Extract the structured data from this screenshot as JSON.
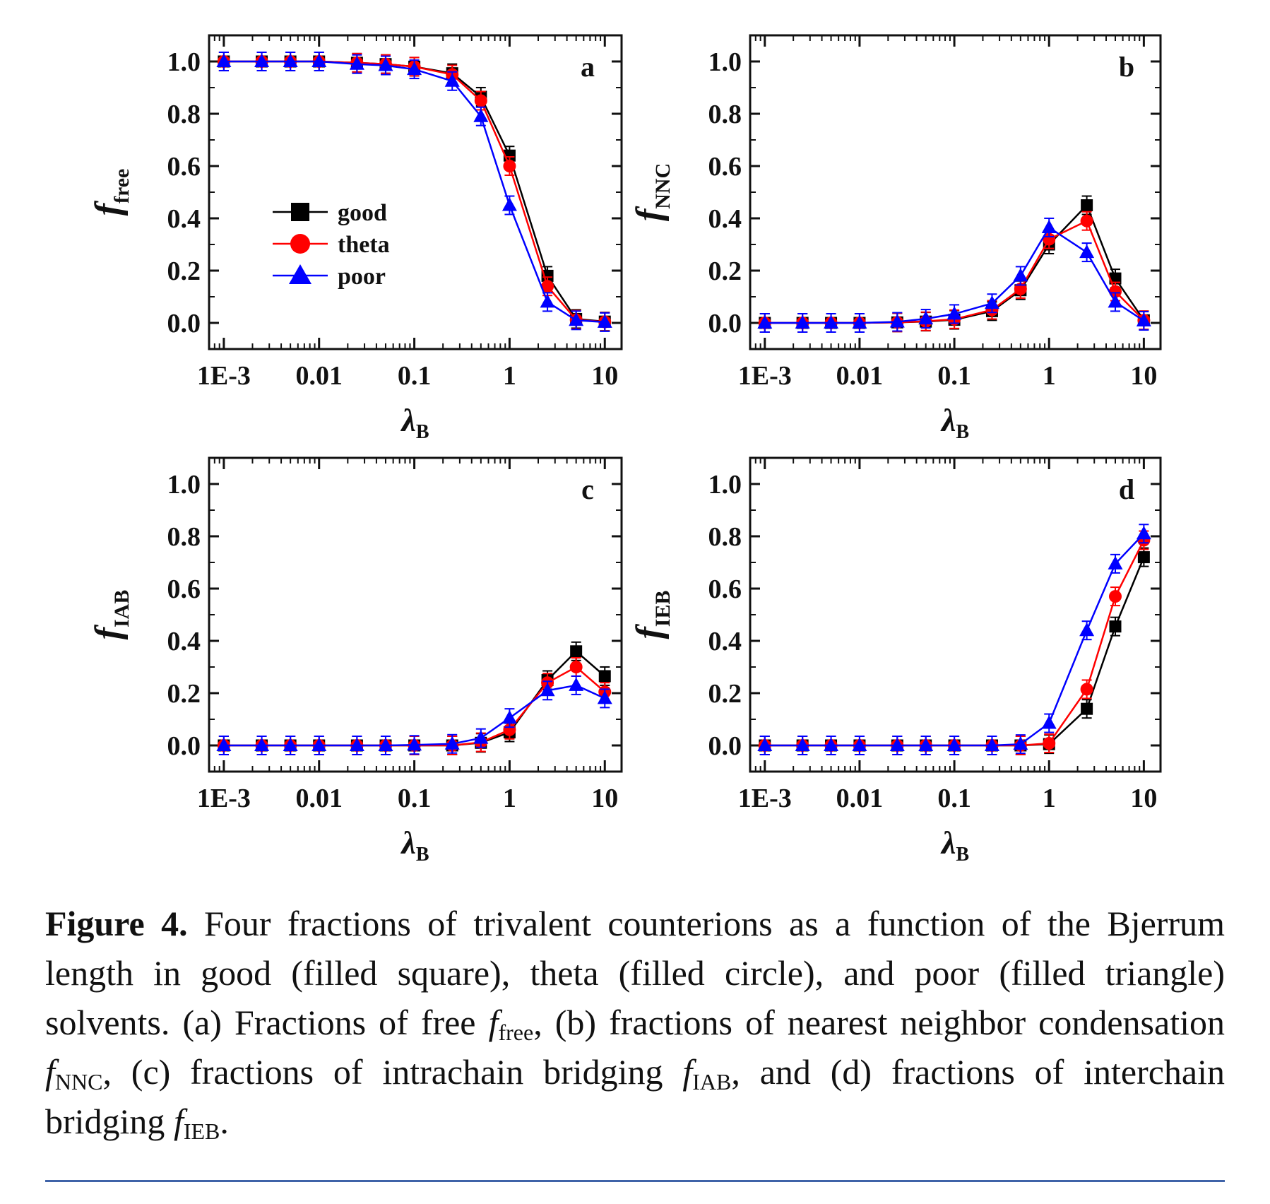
{
  "chart_data": [
    {
      "panel": "a",
      "type": "line",
      "x_scale": "log",
      "xlim": [
        0.0007,
        15
      ],
      "ylim": [
        -0.1,
        1.1
      ],
      "x_ticks": [
        0.001,
        0.01,
        0.1,
        1,
        10
      ],
      "x_tick_labels": [
        "1E-3",
        "0.01",
        "0.1",
        "1",
        "10"
      ],
      "y_ticks": [
        0.0,
        0.2,
        0.4,
        0.6,
        0.8,
        1.0
      ],
      "y_tick_labels": [
        "0.0",
        "0.2",
        "0.4",
        "0.6",
        "0.8",
        "1.0"
      ],
      "ylabel": "f",
      "ylabel_sub": "free",
      "xlabel": "λ",
      "xlabel_sub": "B",
      "legend": "center-left",
      "x": [
        0.001,
        0.0025,
        0.005,
        0.01,
        0.025,
        0.05,
        0.1,
        0.25,
        0.5,
        1,
        2.5,
        5,
        10
      ],
      "series": [
        {
          "name": "good",
          "color": "#000000",
          "marker": "square",
          "values": [
            1.0,
            1.0,
            1.0,
            1.0,
            0.995,
            0.99,
            0.98,
            0.955,
            0.865,
            0.64,
            0.18,
            0.015,
            0.005
          ]
        },
        {
          "name": "theta",
          "color": "#ff0000",
          "marker": "circle",
          "values": [
            1.0,
            1.0,
            1.0,
            1.0,
            0.995,
            0.99,
            0.98,
            0.95,
            0.85,
            0.6,
            0.14,
            0.012,
            0.004
          ]
        },
        {
          "name": "poor",
          "color": "#0000ff",
          "marker": "triangle",
          "values": [
            1.0,
            1.0,
            1.0,
            1.0,
            0.99,
            0.985,
            0.97,
            0.925,
            0.79,
            0.45,
            0.08,
            0.01,
            0.003
          ]
        }
      ]
    },
    {
      "panel": "b",
      "type": "line",
      "x_scale": "log",
      "xlim": [
        0.0007,
        15
      ],
      "ylim": [
        -0.1,
        1.1
      ],
      "x_ticks": [
        0.001,
        0.01,
        0.1,
        1,
        10
      ],
      "x_tick_labels": [
        "1E-3",
        "0.01",
        "0.1",
        "1",
        "10"
      ],
      "y_ticks": [
        0.0,
        0.2,
        0.4,
        0.6,
        0.8,
        1.0
      ],
      "y_tick_labels": [
        "0.0",
        "0.2",
        "0.4",
        "0.6",
        "0.8",
        "1.0"
      ],
      "ylabel": "f",
      "ylabel_sub": "NNC",
      "xlabel": "λ",
      "xlabel_sub": "B",
      "x": [
        0.001,
        0.0025,
        0.005,
        0.01,
        0.025,
        0.05,
        0.1,
        0.25,
        0.5,
        1,
        2.5,
        5,
        10
      ],
      "series": [
        {
          "name": "good",
          "color": "#000000",
          "marker": "square",
          "values": [
            0.0,
            0.0,
            0.0,
            0.0,
            0.002,
            0.005,
            0.012,
            0.045,
            0.125,
            0.3,
            0.45,
            0.17,
            0.01
          ]
        },
        {
          "name": "theta",
          "color": "#ff0000",
          "marker": "circle",
          "values": [
            0.0,
            0.0,
            0.0,
            0.0,
            0.002,
            0.006,
            0.014,
            0.05,
            0.13,
            0.32,
            0.39,
            0.12,
            0.01
          ]
        },
        {
          "name": "poor",
          "color": "#0000ff",
          "marker": "triangle",
          "values": [
            0.0,
            0.0,
            0.0,
            0.0,
            0.004,
            0.016,
            0.034,
            0.075,
            0.18,
            0.365,
            0.27,
            0.08,
            0.008
          ]
        }
      ]
    },
    {
      "panel": "c",
      "type": "line",
      "x_scale": "log",
      "xlim": [
        0.0007,
        15
      ],
      "ylim": [
        -0.1,
        1.1
      ],
      "x_ticks": [
        0.001,
        0.01,
        0.1,
        1,
        10
      ],
      "x_tick_labels": [
        "1E-3",
        "0.01",
        "0.1",
        "1",
        "10"
      ],
      "y_ticks": [
        0.0,
        0.2,
        0.4,
        0.6,
        0.8,
        1.0
      ],
      "y_tick_labels": [
        "0.0",
        "0.2",
        "0.4",
        "0.6",
        "0.8",
        "1.0"
      ],
      "ylabel": "f",
      "ylabel_sub": "IAB",
      "xlabel": "λ",
      "xlabel_sub": "B",
      "x": [
        0.001,
        0.0025,
        0.005,
        0.01,
        0.025,
        0.05,
        0.1,
        0.25,
        0.5,
        1,
        2.5,
        5,
        10
      ],
      "series": [
        {
          "name": "good",
          "color": "#000000",
          "marker": "square",
          "values": [
            0.0,
            0.0,
            0.0,
            0.0,
            0.0,
            0.0,
            0.0,
            0.0,
            0.01,
            0.05,
            0.25,
            0.36,
            0.265
          ]
        },
        {
          "name": "theta",
          "color": "#ff0000",
          "marker": "circle",
          "values": [
            0.0,
            0.0,
            0.0,
            0.0,
            0.0,
            0.0,
            0.0,
            0.0,
            0.012,
            0.06,
            0.24,
            0.3,
            0.205
          ]
        },
        {
          "name": "poor",
          "color": "#0000ff",
          "marker": "triangle",
          "values": [
            0.0,
            0.0,
            0.0,
            0.0,
            0.0,
            0.0,
            0.002,
            0.006,
            0.028,
            0.105,
            0.21,
            0.23,
            0.18
          ]
        }
      ]
    },
    {
      "panel": "d",
      "type": "line",
      "x_scale": "log",
      "xlim": [
        0.0007,
        15
      ],
      "ylim": [
        -0.1,
        1.1
      ],
      "x_ticks": [
        0.001,
        0.01,
        0.1,
        1,
        10
      ],
      "x_tick_labels": [
        "1E-3",
        "0.01",
        "0.1",
        "1",
        "10"
      ],
      "y_ticks": [
        0.0,
        0.2,
        0.4,
        0.6,
        0.8,
        1.0
      ],
      "y_tick_labels": [
        "0.0",
        "0.2",
        "0.4",
        "0.6",
        "0.8",
        "1.0"
      ],
      "ylabel": "f",
      "ylabel_sub": "IEB",
      "xlabel": "λ",
      "xlabel_sub": "B",
      "x": [
        0.001,
        0.0025,
        0.005,
        0.01,
        0.025,
        0.05,
        0.1,
        0.25,
        0.5,
        1,
        2.5,
        5,
        10
      ],
      "series": [
        {
          "name": "good",
          "color": "#000000",
          "marker": "square",
          "values": [
            0.0,
            0.0,
            0.0,
            0.0,
            0.0,
            0.0,
            0.0,
            0.0,
            0.0,
            0.005,
            0.14,
            0.455,
            0.72
          ]
        },
        {
          "name": "theta",
          "color": "#ff0000",
          "marker": "circle",
          "values": [
            0.0,
            0.0,
            0.0,
            0.0,
            0.0,
            0.0,
            0.0,
            0.0,
            0.0,
            0.008,
            0.215,
            0.57,
            0.785
          ]
        },
        {
          "name": "poor",
          "color": "#0000ff",
          "marker": "triangle",
          "values": [
            0.0,
            0.0,
            0.0,
            0.0,
            0.0,
            0.0,
            0.0,
            0.0,
            0.005,
            0.085,
            0.44,
            0.695,
            0.81
          ]
        }
      ]
    }
  ],
  "caption": {
    "label": "Figure 4.",
    "text1": " Four fractions of trivalent counterions as a function of the Bjerrum length in good (filled square), theta (filled circle), and poor (filled triangle) solvents. (a) Fractions of free ",
    "sym1": "f",
    "sub1": "free",
    "text2": ", (b) fractions of nearest neighbor condensation ",
    "sym2": "f",
    "sub2": "NNC",
    "text3": ", (c) fractions of intrachain bridging ",
    "sym3": "f",
    "sub3": "IAB",
    "text4": ", and (d) fractions of interchain bridging ",
    "sym4": "f",
    "sub4": "IEB",
    "text5": "."
  },
  "colors": {
    "caption_rule": "#3f63a8"
  }
}
